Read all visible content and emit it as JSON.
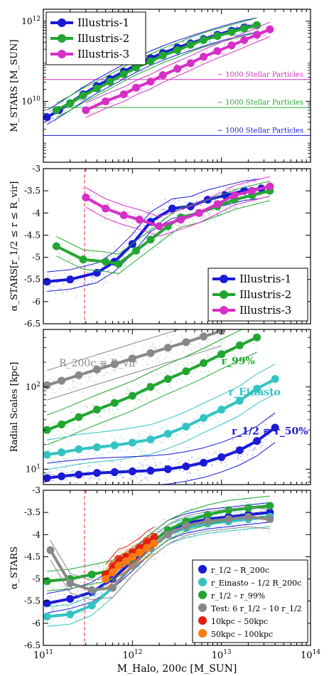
{
  "figure": {
    "xlabel": "M_Halo, 200c [M_SUN]",
    "xticks": [
      {
        "v": 100000000000.0,
        "label": "10^11"
      },
      {
        "v": 1000000000000.0,
        "label": "10^12"
      },
      {
        "v": 10000000000000.0,
        "label": "10^13"
      },
      {
        "v": 100000000000000.0,
        "label": "10^14"
      }
    ]
  },
  "chart_data": [
    {
      "type": "line",
      "panel": "mstars",
      "xscale": "log",
      "yscale": "log",
      "xlim": [
        100000000000.0,
        100000000000000.0
      ],
      "ylim": [
        300000000.0,
        2000000000000.0
      ],
      "ylabel": "M_STARS [M_SUN]",
      "yticks": [
        {
          "v": 10000000000.0,
          "label": "10^10"
        },
        {
          "v": 1000000000000.0,
          "label": "10^12"
        }
      ],
      "legend_position": "top-left",
      "series": [
        {
          "name": "Illustris-1",
          "color": "#1a1ad6",
          "x": [
            110000000000.0,
            150000000000.0,
            200000000000.0,
            280000000000.0,
            400000000000.0,
            560000000000.0,
            800000000000.0,
            1100000000000.0,
            1600000000000.0,
            2200000000000.0,
            3200000000000.0,
            4500000000000.0,
            6300000000000.0,
            9000000000000.0,
            13000000000000.0,
            18000000000000.0,
            25000000000000.0
          ],
          "y": [
            4000000000.0,
            6000000000.0,
            9000000000.0,
            15000000000.0,
            24000000000.0,
            36000000000.0,
            55000000000.0,
            80000000000.0,
            120000000000.0,
            160000000000.0,
            220000000000.0,
            280000000000.0,
            360000000000.0,
            460000000000.0,
            580000000000.0,
            700000000000.0,
            800000000000.0
          ]
        },
        {
          "name": "Illustris-2",
          "color": "#22a632",
          "x": [
            140000000000.0,
            200000000000.0,
            280000000000.0,
            400000000000.0,
            560000000000.0,
            800000000000.0,
            1100000000000.0,
            1600000000000.0,
            2200000000000.0,
            3200000000000.0,
            4500000000000.0,
            6300000000000.0,
            9000000000000.0,
            13000000000000.0,
            18000000000000.0,
            25000000000000.0
          ],
          "y": [
            6000000000.0,
            9000000000.0,
            14000000000.0,
            21000000000.0,
            31000000000.0,
            48000000000.0,
            70000000000.0,
            100000000000.0,
            140000000000.0,
            190000000000.0,
            260000000000.0,
            340000000000.0,
            430000000000.0,
            540000000000.0,
            660000000000.0,
            800000000000.0
          ]
        },
        {
          "name": "Illustris-3",
          "color": "#d62fc6",
          "x": [
            300000000000.0,
            500000000000.0,
            800000000000.0,
            1100000000000.0,
            1600000000000.0,
            2200000000000.0,
            3200000000000.0,
            4500000000000.0,
            6300000000000.0,
            9000000000000.0,
            13000000000000.0,
            18000000000000.0,
            25000000000000.0,
            35000000000000.0
          ],
          "y": [
            6000000000.0,
            10000000000.0,
            15000000000.0,
            22000000000.0,
            31000000000.0,
            45000000000.0,
            65000000000.0,
            90000000000.0,
            130000000000.0,
            180000000000.0,
            250000000000.0,
            340000000000.0,
            460000000000.0,
            630000000000.0
          ]
        }
      ],
      "hlines": [
        {
          "y": 1400000000.0,
          "label": "~ 1000 Stellar Particles",
          "color": "#1a1ad6"
        },
        {
          "y": 7000000000.0,
          "label": "~ 1000 Stellar Particles",
          "color": "#22a632"
        },
        {
          "y": 35000000000.0,
          "label": "~ 1000 Stellar Particles",
          "color": "#d62fc6"
        }
      ]
    },
    {
      "type": "line",
      "panel": "alpha_r12_rvir",
      "xscale": "log",
      "yscale": "linear",
      "xlim": [
        100000000000.0,
        100000000000000.0
      ],
      "ylim": [
        -6.5,
        -3.0
      ],
      "ylabel": "α_STARS[r_1/2 ≤ r ≤ R_vir]",
      "yticks": [
        {
          "v": -3,
          "label": "-3"
        },
        {
          "v": -3.5,
          "label": "-3.5"
        },
        {
          "v": -4,
          "label": "-4"
        },
        {
          "v": -4.5,
          "label": "-4.5"
        },
        {
          "v": -5,
          "label": "-5"
        },
        {
          "v": -5.5,
          "label": "-5.5"
        },
        {
          "v": -6,
          "label": "-6"
        },
        {
          "v": -6.5,
          "label": "-6.5"
        }
      ],
      "vline": {
        "x": 290000000000.0,
        "color": "#e03030"
      },
      "legend_position": "bottom-right",
      "series": [
        {
          "name": "Illustris-1",
          "color": "#1a1ad6",
          "x": [
            110000000000.0,
            200000000000.0,
            400000000000.0,
            630000000000.0,
            1000000000000.0,
            1600000000000.0,
            2800000000000.0,
            4500000000000.0,
            7000000000000.0,
            11000000000000.0,
            18000000000000.0,
            28000000000000.0
          ],
          "y": [
            -5.55,
            -5.5,
            -5.35,
            -5.1,
            -4.7,
            -4.2,
            -3.9,
            -3.85,
            -3.7,
            -3.6,
            -3.5,
            -3.45
          ]
        },
        {
          "name": "Illustris-2",
          "color": "#22a632",
          "x": [
            140000000000.0,
            280000000000.0,
            500000000000.0,
            700000000000.0,
            1100000000000.0,
            1600000000000.0,
            2500000000000.0,
            3500000000000.0,
            5600000000000.0,
            9000000000000.0,
            14000000000000.0,
            22000000000000.0,
            35000000000000.0
          ],
          "y": [
            -4.75,
            -5.05,
            -5.1,
            -5.15,
            -4.85,
            -4.6,
            -4.3,
            -4.1,
            -4.0,
            -3.85,
            -3.7,
            -3.6,
            -3.5
          ]
        },
        {
          "name": "Illustris-3",
          "color": "#d62fc6",
          "x": [
            300000000000.0,
            500000000000.0,
            800000000000.0,
            1200000000000.0,
            2000000000000.0,
            3500000000000.0,
            5600000000000.0,
            9000000000000.0,
            14000000000000.0,
            22000000000000.0,
            35000000000000.0
          ],
          "y": [
            -3.65,
            -3.9,
            -4.05,
            -4.15,
            -4.3,
            -4.15,
            -4.0,
            -3.8,
            -3.6,
            -3.5,
            -3.4
          ]
        }
      ]
    },
    {
      "type": "line",
      "panel": "radial_scales",
      "xscale": "log",
      "yscale": "log",
      "xlim": [
        100000000000.0,
        100000000000000.0
      ],
      "ylim": [
        6.5,
        500
      ],
      "ylabel": "Radial Scales [kpc]",
      "yticks": [
        {
          "v": 10,
          "label": "10^1"
        },
        {
          "v": 100,
          "label": "10^2"
        }
      ],
      "series": [
        {
          "name": "R_200c ≡ R_vir",
          "color": "#888888",
          "x": [
            110000000000.0,
            160000000000.0,
            250000000000.0,
            400000000000.0,
            630000000000.0,
            1000000000000.0,
            1600000000000.0,
            2500000000000.0,
            4000000000000.0,
            6300000000000.0,
            10000000000000.0
          ],
          "y": [
            105,
            119,
            139,
            163,
            189,
            222,
            258,
            300,
            350,
            410,
            480
          ]
        },
        {
          "name": "r_99%",
          "color": "#22a632",
          "x": [
            110000000000.0,
            160000000000.0,
            250000000000.0,
            400000000000.0,
            630000000000.0,
            1000000000000.0,
            1600000000000.0,
            2500000000000.0,
            4000000000000.0,
            6300000000000.0,
            10000000000000.0,
            16000000000000.0,
            25000000000000.0
          ],
          "y": [
            30,
            35,
            43,
            53,
            64,
            78,
            100,
            125,
            155,
            195,
            250,
            320,
            400
          ]
        },
        {
          "name": "r_Einasto",
          "color": "#33c3c3",
          "x": [
            110000000000.0,
            160000000000.0,
            250000000000.0,
            400000000000.0,
            630000000000.0,
            1000000000000.0,
            1600000000000.0,
            2500000000000.0,
            4000000000000.0,
            6300000000000.0,
            10000000000000.0,
            16000000000000.0,
            25000000000000.0,
            40000000000000.0
          ],
          "y": [
            15,
            16,
            17.5,
            18.5,
            19.5,
            21,
            23,
            27,
            33,
            42,
            53,
            68,
            95,
            125
          ]
        },
        {
          "name": "r_1/2 ≡ r_50%",
          "color": "#1a1ad6",
          "x": [
            110000000000.0,
            160000000000.0,
            250000000000.0,
            400000000000.0,
            630000000000.0,
            1000000000000.0,
            1600000000000.0,
            2500000000000.0,
            4000000000000.0,
            6300000000000.0,
            10000000000000.0,
            16000000000000.0,
            25000000000000.0,
            40000000000000.0
          ],
          "y": [
            7.8,
            8.2,
            8.6,
            9.0,
            9.2,
            9.4,
            9.6,
            10.0,
            10.8,
            12.0,
            14.0,
            17.0,
            22.0,
            32.0
          ]
        }
      ]
    },
    {
      "type": "line",
      "panel": "alpha_stars",
      "xscale": "log",
      "yscale": "linear",
      "xlim": [
        100000000000.0,
        100000000000000.0
      ],
      "ylim": [
        -6.5,
        -3.0
      ],
      "ylabel": "α_STARS",
      "yticks": [
        {
          "v": -3,
          "label": "-3"
        },
        {
          "v": -3.5,
          "label": "-3.5"
        },
        {
          "v": -4,
          "label": "-4"
        },
        {
          "v": -4.5,
          "label": "-4.5"
        },
        {
          "v": -5,
          "label": "-5"
        },
        {
          "v": -5.5,
          "label": "-5.5"
        },
        {
          "v": -6,
          "label": "-6"
        },
        {
          "v": -6.5,
          "label": "-6.5"
        }
      ],
      "vline": {
        "x": 290000000000.0,
        "color": "#e03030"
      },
      "legend_position": "bottom-right",
      "series": [
        {
          "name": "r_1/2 – R_200c",
          "color": "#1a1ad6",
          "x": [
            110000000000.0,
            200000000000.0,
            350000000000.0,
            600000000000.0,
            1000000000000.0,
            1600000000000.0,
            2500000000000.0,
            4000000000000.0,
            7000000000000.0,
            12000000000000.0,
            20000000000000.0,
            35000000000000.0
          ],
          "y": [
            -5.55,
            -5.45,
            -5.3,
            -5.0,
            -4.6,
            -4.2,
            -3.9,
            -3.75,
            -3.65,
            -3.6,
            -3.55,
            -3.5
          ]
        },
        {
          "name": "r_Einasto – 1/2 R_200c",
          "color": "#33c3c3",
          "x": [
            110000000000.0,
            200000000000.0,
            350000000000.0,
            600000000000.0,
            1000000000000.0,
            1600000000000.0,
            2500000000000.0,
            4000000000000.0,
            7000000000000.0,
            12000000000000.0,
            20000000000000.0,
            35000000000000.0
          ],
          "y": [
            -5.85,
            -5.8,
            -5.6,
            -5.2,
            -4.7,
            -4.3,
            -4.0,
            -3.85,
            -3.75,
            -3.7,
            -3.65,
            -3.6
          ]
        },
        {
          "name": "r_1/2 – r_99%",
          "color": "#22a632",
          "x": [
            110000000000.0,
            200000000000.0,
            350000000000.0,
            600000000000.0,
            1000000000000.0,
            1600000000000.0,
            2500000000000.0,
            4000000000000.0,
            7000000000000.0,
            12000000000000.0,
            20000000000000.0,
            35000000000000.0
          ],
          "y": [
            -5.05,
            -5.0,
            -4.9,
            -4.8,
            -4.55,
            -4.2,
            -3.9,
            -3.7,
            -3.55,
            -3.45,
            -3.4,
            -3.35
          ]
        },
        {
          "name": "Test: 6 r_1/2 – 10 r_1/2",
          "color": "#888888",
          "x": [
            120000000000.0,
            200000000000.0,
            350000000000.0,
            600000000000.0,
            1000000000000.0,
            1600000000000.0,
            2500000000000.0,
            4000000000000.0,
            7000000000000.0,
            12000000000000.0,
            20000000000000.0,
            35000000000000.0
          ],
          "y": [
            -4.35,
            -5.1,
            -5.25,
            -5.2,
            -4.7,
            -4.3,
            -4.0,
            -3.8,
            -3.7,
            -3.65,
            -3.6,
            -3.65
          ]
        },
        {
          "name": "10kpc – 50kpc",
          "color": "#e02010",
          "x": [
            500000000000.0,
            600000000000.0,
            700000000000.0,
            850000000000.0,
            1000000000000.0,
            1200000000000.0,
            1450000000000.0,
            1750000000000.0
          ],
          "y": [
            -4.9,
            -4.7,
            -4.55,
            -4.5,
            -4.4,
            -4.3,
            -4.15,
            -4.05
          ]
        },
        {
          "name": "50kpc – 100kpc",
          "color": "#ff7a10",
          "x": [
            500000000000.0,
            600000000000.0,
            700000000000.0,
            850000000000.0,
            1000000000000.0,
            1200000000000.0,
            1450000000000.0,
            1750000000000.0
          ],
          "y": [
            -5.0,
            -4.85,
            -4.7,
            -4.6,
            -4.5,
            -4.4,
            -4.3,
            -4.2
          ]
        }
      ]
    }
  ]
}
